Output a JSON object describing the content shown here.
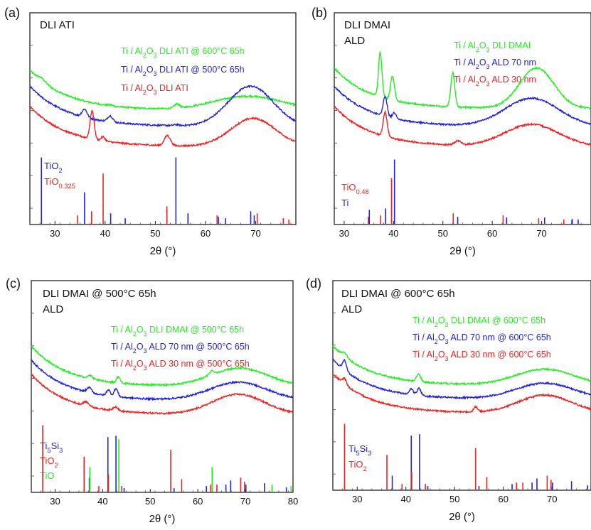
{
  "chart_data": [
    {
      "type": "line",
      "panel": "(a)",
      "title_lines": [
        "DLI ATI"
      ],
      "xlabel": "2θ (°)",
      "xlim": [
        25,
        78
      ],
      "xticks": [
        30,
        40,
        50,
        60,
        70
      ],
      "legend_placement": "top-right",
      "legend": [
        {
          "label": "Ti / Al2O3 DLI ATI @ 600°C 65h",
          "color": "#22ee22"
        },
        {
          "label": "Ti / Al2O3 DLI ATI @ 500°C 65h",
          "color": "#2222dd"
        },
        {
          "label": "Ti / Al2O3 DLI ATI",
          "color": "#ee2222"
        }
      ],
      "series": [
        {
          "name": "Ti / Al2O3 DLI ATI @ 600°C 65h",
          "color": "#22ee22",
          "offset": 0.18,
          "peaks": [
            [
              27.4,
              0.015,
              0.8
            ],
            [
              41,
              0.004,
              0.5
            ],
            [
              54.3,
              0.02,
              0.5
            ]
          ],
          "hump": [
            68.5,
            0.07,
            7
          ]
        },
        {
          "name": "Ti / Al2O3 DLI ATI @ 500°C 65h",
          "color": "#2222dd",
          "offset": 0.1,
          "peaks": [
            [
              35.9,
              0.04,
              0.5
            ],
            [
              41,
              0.03,
              0.5
            ],
            [
              54.2,
              0.005,
              0.5
            ]
          ],
          "hump": [
            69,
            0.2,
            4.5
          ]
        },
        {
          "name": "Ti / Al2O3 DLI ATI",
          "color": "#ee2222",
          "offset": 0.0,
          "peaks": [
            [
              37.4,
              0.14,
              0.4
            ],
            [
              39.6,
              0.02,
              0.4
            ],
            [
              52.4,
              0.05,
              0.6
            ]
          ],
          "hump": [
            69.5,
            0.14,
            4.5
          ]
        }
      ],
      "reference_phases": [
        {
          "label": "TiO2",
          "color": "#2222dd",
          "lines": [
            [
              27.3,
              0.95
            ],
            [
              35.9,
              0.45
            ],
            [
              41.1,
              0.15
            ],
            [
              44,
              0.08
            ],
            [
              54.1,
              0.95
            ],
            [
              56.5,
              0.15
            ],
            [
              62.6,
              0.1
            ],
            [
              64,
              0.08
            ],
            [
              69,
              0.18
            ],
            [
              69.7,
              0.12
            ]
          ]
        },
        {
          "label": "TiO0.325",
          "color": "#ee2222",
          "lines": [
            [
              34.5,
              0.12
            ],
            [
              37.3,
              0.18
            ],
            [
              39.6,
              0.72
            ],
            [
              52.3,
              0.25
            ],
            [
              62.3,
              0.12
            ],
            [
              70.3,
              0.15
            ],
            [
              75.5,
              0.08
            ],
            [
              76.6,
              0.06
            ]
          ]
        }
      ]
    },
    {
      "type": "line",
      "panel": "(b)",
      "title_lines": [
        "DLI DMAI",
        "ALD"
      ],
      "xlabel": "2θ (°)",
      "xlim": [
        28,
        80
      ],
      "xticks": [
        30,
        40,
        50,
        60,
        70
      ],
      "legend_placement": "top-right",
      "legend": [
        {
          "label": "Ti / Al2O3 DLI DMAI",
          "color": "#22ee22"
        },
        {
          "label": "Ti / Al2O3 ALD 70 nm",
          "color": "#2222dd"
        },
        {
          "label": "Ti / Al2O3 ALD 30 nm",
          "color": "#ee2222"
        }
      ],
      "series": [
        {
          "name": "Ti / Al2O3 DLI DMAI",
          "color": "#22ee22",
          "offset": 0.19,
          "peaks": [
            [
              37.3,
              0.22,
              0.35
            ],
            [
              39.8,
              0.12,
              0.4
            ],
            [
              52,
              0.17,
              0.4
            ]
          ],
          "hump": [
            69,
            0.2,
            3.5
          ]
        },
        {
          "name": "Ti / Al2O3 ALD 70 nm",
          "color": "#2222dd",
          "offset": 0.1,
          "peaks": [
            [
              38.3,
              0.1,
              0.4
            ],
            [
              40.2,
              0.03,
              0.4
            ]
          ],
          "hump": [
            68,
            0.14,
            5.5
          ]
        },
        {
          "name": "Ti / Al2O3 ALD 30 nm",
          "color": "#ee2222",
          "offset": 0.0,
          "peaks": [
            [
              38.3,
              0.12,
              0.4
            ],
            [
              53,
              0.02,
              0.6
            ]
          ],
          "hump": [
            68,
            0.11,
            5.5
          ]
        }
      ],
      "reference_phases": [
        {
          "label": "TiO0.48",
          "color": "#ee2222",
          "lines": [
            [
              34.9,
              0.1
            ],
            [
              37.4,
              0.12
            ],
            [
              39.6,
              0.65
            ],
            [
              52.1,
              0.15
            ],
            [
              62.2,
              0.12
            ],
            [
              69.4,
              0.08
            ],
            [
              74.5,
              0.06
            ],
            [
              76.1,
              0.05
            ]
          ]
        },
        {
          "label": "Ti",
          "color": "#2222dd",
          "lines": [
            [
              35.1,
              0.2
            ],
            [
              38.4,
              0.22
            ],
            [
              40.2,
              0.92
            ],
            [
              53,
              0.1
            ],
            [
              62.9,
              0.09
            ],
            [
              70.6,
              0.09
            ],
            [
              76.2,
              0.07
            ],
            [
              77.4,
              0.06
            ]
          ]
        }
      ]
    },
    {
      "type": "line",
      "panel": "(c)",
      "title_lines": [
        "DLI DMAI    @    500°C 65h",
        "ALD"
      ],
      "xlabel": "2θ (°)",
      "xlim": [
        25,
        80
      ],
      "xticks": [
        30,
        40,
        50,
        60,
        70,
        80
      ],
      "legend_placement": "top-right",
      "legend": [
        {
          "label": "Ti / Al2O3 DLI DMAI @ 500°C 65h",
          "color": "#22ee22"
        },
        {
          "label": "Ti / Al2O3 ALD 70 nm @ 500°C 65h",
          "color": "#2222dd"
        },
        {
          "label": "Ti / Al2O3 ALD 30 nm @ 500°C 65h",
          "color": "#ee2222"
        }
      ],
      "series": [
        {
          "name": "Ti / Al2O3 DLI DMAI @ 500°C 65h",
          "color": "#22ee22",
          "offset": 0.14,
          "peaks": [
            [
              37.3,
              0.015,
              0.5
            ],
            [
              43.3,
              0.03,
              0.4
            ],
            [
              62.9,
              0.02,
              0.5
            ]
          ],
          "hump": [
            68.7,
            0.09,
            6
          ]
        },
        {
          "name": "Ti / Al2O3 ALD 70 nm @ 500°C 65h",
          "color": "#2222dd",
          "offset": 0.07,
          "peaks": [
            [
              37.2,
              0.025,
              0.5
            ],
            [
              41.2,
              0.03,
              0.4
            ],
            [
              42.8,
              0.04,
              0.4
            ]
          ],
          "hump": [
            68.5,
            0.09,
            6
          ]
        },
        {
          "name": "Ti / Al2O3 ALD 30 nm @ 500°C 65h",
          "color": "#ee2222",
          "offset": 0.0,
          "peaks": [
            [
              36.5,
              0.02,
              0.6
            ],
            [
              42.7,
              0.02,
              0.5
            ]
          ],
          "hump": [
            68.5,
            0.1,
            5.5
          ]
        }
      ],
      "reference_phases": [
        {
          "label": "Ti5Si3",
          "color": "#2222dd",
          "lines": [
            [
              37.2,
              0.2
            ],
            [
              41.1,
              0.78
            ],
            [
              42.8,
              0.8
            ],
            [
              44.5,
              0.05
            ],
            [
              55,
              0.05
            ],
            [
              61.8,
              0.08
            ],
            [
              65.9,
              0.1
            ],
            [
              66.9,
              0.16
            ],
            [
              70.1,
              0.1
            ],
            [
              74,
              0.12
            ],
            [
              78.6,
              0.06
            ]
          ]
        },
        {
          "label": "TiO2",
          "color": "#ee2222",
          "lines": [
            [
              27.4,
              0.95
            ],
            [
              36.1,
              0.5
            ],
            [
              39.2,
              0.08
            ],
            [
              41.2,
              0.25
            ],
            [
              44,
              0.08
            ],
            [
              54.3,
              0.6
            ],
            [
              56.6,
              0.18
            ],
            [
              62.7,
              0.1
            ],
            [
              64,
              0.1
            ],
            [
              69,
              0.2
            ],
            [
              69.8,
              0.14
            ]
          ]
        },
        {
          "label": "TiO",
          "color": "#22ee22",
          "lines": [
            [
              37.3,
              0.35
            ],
            [
              43.4,
              0.75
            ],
            [
              63,
              0.35
            ],
            [
              75.6,
              0.1
            ],
            [
              79.6,
              0.08
            ]
          ]
        }
      ]
    },
    {
      "type": "line",
      "panel": "(d)",
      "title_lines": [
        "DLI DMAI    @    600°C 65h",
        "ALD"
      ],
      "xlabel": "2θ (°)",
      "xlim": [
        25,
        78
      ],
      "xticks": [
        30,
        40,
        50,
        60,
        70
      ],
      "legend_placement": "top-right",
      "legend": [
        {
          "label": "Ti / Al2O3 DLI DMAI @ 600°C 65h",
          "color": "#22ee22"
        },
        {
          "label": "Ti / Al2O3 ALD 70 nm @ 600°C 65h",
          "color": "#2222dd"
        },
        {
          "label": "Ti / Al2O3 ALD 30 nm @ 600°C 65h",
          "color": "#ee2222"
        }
      ],
      "series": [
        {
          "name": "Ti / Al2O3 DLI DMAI @ 600°C 65h",
          "color": "#22ee22",
          "offset": 0.14,
          "peaks": [
            [
              27.4,
              0.02,
              0.5
            ],
            [
              42.6,
              0.04,
              0.4
            ]
          ],
          "hump": [
            68.5,
            0.08,
            6
          ]
        },
        {
          "name": "Ti / Al2O3 ALD 70 nm @ 600°C 65h",
          "color": "#2222dd",
          "offset": 0.07,
          "peaks": [
            [
              27.4,
              0.05,
              0.4
            ],
            [
              41.1,
              0.03,
              0.4
            ],
            [
              42.7,
              0.035,
              0.4
            ]
          ],
          "hump": [
            68.5,
            0.08,
            6
          ]
        },
        {
          "name": "Ti / Al2O3 ALD 30 nm @ 600°C 65h",
          "color": "#ee2222",
          "offset": 0.0,
          "peaks": [
            [
              27.4,
              0.03,
              0.4
            ],
            [
              54.3,
              0.025,
              0.4
            ]
          ],
          "hump": [
            68.5,
            0.09,
            5.5
          ]
        }
      ],
      "reference_phases": [
        {
          "label": "Ti5Si3",
          "color": "#2222dd",
          "lines": [
            [
              37.2,
              0.2
            ],
            [
              41.1,
              0.78
            ],
            [
              42.8,
              0.8
            ],
            [
              44.5,
              0.05
            ],
            [
              55,
              0.05
            ],
            [
              61.8,
              0.08
            ],
            [
              65.9,
              0.1
            ],
            [
              66.9,
              0.16
            ],
            [
              70.1,
              0.1
            ],
            [
              74,
              0.12
            ],
            [
              77.3,
              0.06
            ]
          ]
        },
        {
          "label": "TiO2",
          "color": "#ee2222",
          "lines": [
            [
              27.4,
              0.95
            ],
            [
              36.1,
              0.5
            ],
            [
              39.2,
              0.08
            ],
            [
              41.2,
              0.25
            ],
            [
              44,
              0.08
            ],
            [
              54.3,
              0.6
            ],
            [
              56.6,
              0.18
            ],
            [
              62.7,
              0.1
            ],
            [
              64,
              0.1
            ],
            [
              69,
              0.2
            ],
            [
              69.8,
              0.14
            ]
          ]
        }
      ]
    }
  ]
}
